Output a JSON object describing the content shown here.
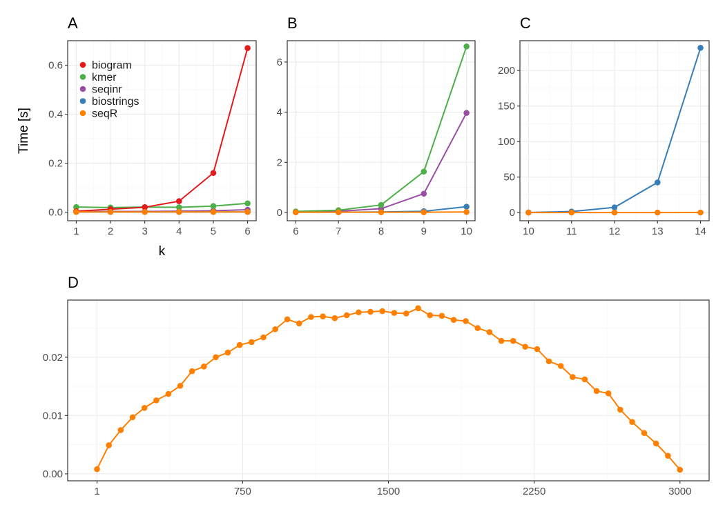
{
  "colors": {
    "biogram": "#e41a1c",
    "kmer": "#4daf4a",
    "seqinr": "#984ea3",
    "biostrings": "#377eb8",
    "seqR": "#ff7f00"
  },
  "chart_data": [
    {
      "panel": "A",
      "type": "line",
      "title": "A",
      "xlabel": "k",
      "ylabel": "Time [s]",
      "xlim": [
        0.75,
        6.25
      ],
      "ylim": [
        -0.035,
        0.7
      ],
      "xticks": [
        1,
        2,
        3,
        4,
        5,
        6
      ],
      "yticks": [
        0.0,
        0.2,
        0.4,
        0.6
      ],
      "ytick_labels": [
        "0.0",
        "0.2",
        "0.4",
        "0.6"
      ],
      "legend": {
        "position": "top-left",
        "entries": [
          "biogram",
          "kmer",
          "seqinr",
          "biostrings",
          "seqR"
        ]
      },
      "x": [
        1,
        2,
        3,
        4,
        5,
        6
      ],
      "series": [
        {
          "name": "seqinr",
          "values": [
            0.002,
            0.003,
            0.003,
            0.004,
            0.006,
            0.01
          ]
        },
        {
          "name": "biostrings",
          "values": [
            0.001,
            0.001,
            0.001,
            0.001,
            0.001,
            0.001
          ]
        },
        {
          "name": "kmer",
          "values": [
            0.021,
            0.019,
            0.021,
            0.02,
            0.025,
            0.036
          ]
        },
        {
          "name": "biogram",
          "values": [
            0.004,
            0.012,
            0.02,
            0.045,
            0.16,
            0.67
          ]
        },
        {
          "name": "seqR",
          "values": [
            0.001,
            0.001,
            0.001,
            0.001,
            0.001,
            0.001
          ]
        }
      ]
    },
    {
      "panel": "B",
      "type": "line",
      "title": "B",
      "xlabel": "",
      "ylabel": "",
      "xlim": [
        5.8,
        10.2
      ],
      "ylim": [
        -0.33,
        6.85
      ],
      "xticks": [
        6,
        7,
        8,
        9,
        10
      ],
      "yticks": [
        0,
        2,
        4,
        6
      ],
      "ytick_labels": [
        "0",
        "2",
        "4",
        "6"
      ],
      "x": [
        6,
        7,
        8,
        9,
        10
      ],
      "series": [
        {
          "name": "seqinr",
          "values": [
            0.02,
            0.05,
            0.15,
            0.75,
            3.97
          ]
        },
        {
          "name": "biostrings",
          "values": [
            0.01,
            0.01,
            0.02,
            0.05,
            0.23
          ]
        },
        {
          "name": "kmer",
          "values": [
            0.04,
            0.09,
            0.3,
            1.63,
            6.62
          ]
        },
        {
          "name": "seqR",
          "values": [
            0.01,
            0.01,
            0.01,
            0.01,
            0.02
          ]
        }
      ]
    },
    {
      "panel": "C",
      "type": "line",
      "title": "C",
      "xlabel": "",
      "ylabel": "",
      "xlim": [
        9.8,
        14.2
      ],
      "ylim": [
        -11.5,
        242
      ],
      "xticks": [
        10,
        11,
        12,
        13,
        14
      ],
      "yticks": [
        0,
        50,
        100,
        150,
        200
      ],
      "ytick_labels": [
        "0",
        "50",
        "100",
        "150",
        "200"
      ],
      "x": [
        10,
        11,
        12,
        13,
        14
      ],
      "series": [
        {
          "name": "biostrings",
          "values": [
            0.2,
            1.5,
            7.3,
            42.5,
            232
          ]
        },
        {
          "name": "seqR",
          "values": [
            0.01,
            0.02,
            0.03,
            0.05,
            0.1
          ]
        }
      ]
    },
    {
      "panel": "D",
      "type": "line",
      "title": "D",
      "xlabel": "",
      "ylabel": "",
      "xlim": [
        -150,
        3150
      ],
      "ylim": [
        -0.0012,
        0.0298
      ],
      "xticks": [
        1,
        750,
        1500,
        2250,
        3000
      ],
      "xtick_labels": [
        "1",
        "750",
        "1500",
        "2250",
        "3000"
      ],
      "yticks": [
        0.0,
        0.01,
        0.02
      ],
      "ytick_labels": [
        "0.00",
        "0.01",
        "0.02"
      ],
      "x": [
        1,
        62,
        123,
        184,
        245,
        306,
        368,
        429,
        490,
        551,
        612,
        674,
        735,
        796,
        857,
        918,
        980,
        1041,
        1102,
        1163,
        1224,
        1286,
        1347,
        1408,
        1469,
        1530,
        1592,
        1653,
        1714,
        1775,
        1836,
        1898,
        1959,
        2020,
        2081,
        2142,
        2204,
        2265,
        2326,
        2387,
        2448,
        2510,
        2571,
        2632,
        2693,
        2754,
        2816,
        2877,
        2938,
        3000
      ],
      "series": [
        {
          "name": "seqR",
          "values": [
            0.0008,
            0.0049,
            0.0075,
            0.0097,
            0.0113,
            0.0126,
            0.0137,
            0.0151,
            0.0176,
            0.0184,
            0.02,
            0.0208,
            0.0221,
            0.0226,
            0.0234,
            0.0248,
            0.0265,
            0.0258,
            0.0269,
            0.027,
            0.0267,
            0.0272,
            0.0277,
            0.0278,
            0.0279,
            0.0276,
            0.0275,
            0.0284,
            0.0272,
            0.0271,
            0.0264,
            0.0262,
            0.025,
            0.0243,
            0.0228,
            0.0228,
            0.0218,
            0.0214,
            0.0193,
            0.0185,
            0.0166,
            0.0162,
            0.0142,
            0.0138,
            0.011,
            0.0089,
            0.007,
            0.0052,
            0.0031,
            0.0007
          ]
        }
      ]
    }
  ]
}
